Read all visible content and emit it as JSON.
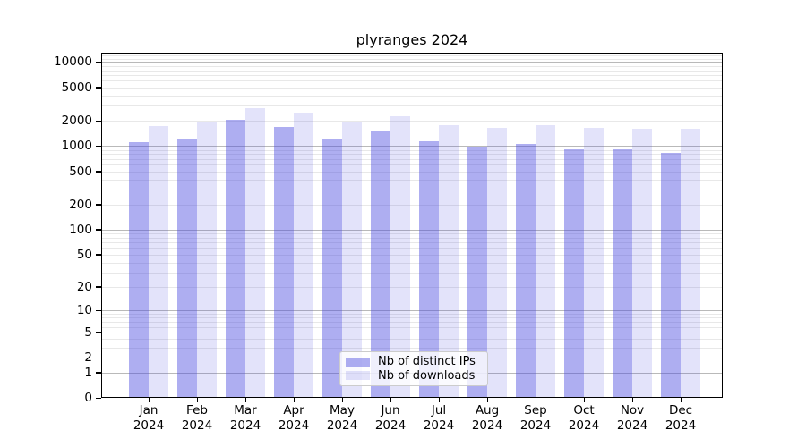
{
  "chart_data": {
    "type": "bar",
    "title": "plyranges 2024",
    "categories": [
      "Jan",
      "Feb",
      "Mar",
      "Apr",
      "May",
      "Jun",
      "Jul",
      "Aug",
      "Sep",
      "Oct",
      "Nov",
      "Dec"
    ],
    "category_year": "2024",
    "series": [
      {
        "name": "Nb of distinct IPs",
        "values": [
          1120,
          1220,
          2060,
          1690,
          1240,
          1520,
          1150,
          990,
          1050,
          920,
          910,
          820
        ]
      },
      {
        "name": "Nb of downloads",
        "values": [
          1720,
          1960,
          2810,
          2470,
          1960,
          2270,
          1790,
          1660,
          1750,
          1640,
          1610,
          1620
        ]
      }
    ],
    "xlabel": "",
    "ylabel": "",
    "y_axis": {
      "scale": "log10(value+1)",
      "ticks": [
        10000,
        5000,
        2000,
        1000,
        500,
        200,
        100,
        50,
        20,
        10,
        5,
        2,
        1,
        0
      ],
      "ylim": [
        0,
        12900
      ],
      "grid_major_values": [
        1,
        10,
        100,
        1000,
        10000
      ]
    },
    "legend_position": "lower center",
    "grid": true,
    "colors": {
      "distinct_ips_fill": "rgba(70,70,222,0.44)",
      "downloads_fill": "rgba(70,70,222,0.15)",
      "distinct_ips_hex_on_white": "#aeaef0",
      "downloads_hex_on_white": "#e3e3fa",
      "grid_major": "#b9b9b9",
      "grid_minor": "#e8e8e8",
      "spine": "#000000",
      "background": "#ffffff"
    }
  },
  "legend": {
    "items": [
      {
        "label": "Nb of distinct IPs"
      },
      {
        "label": "Nb of downloads"
      }
    ]
  }
}
